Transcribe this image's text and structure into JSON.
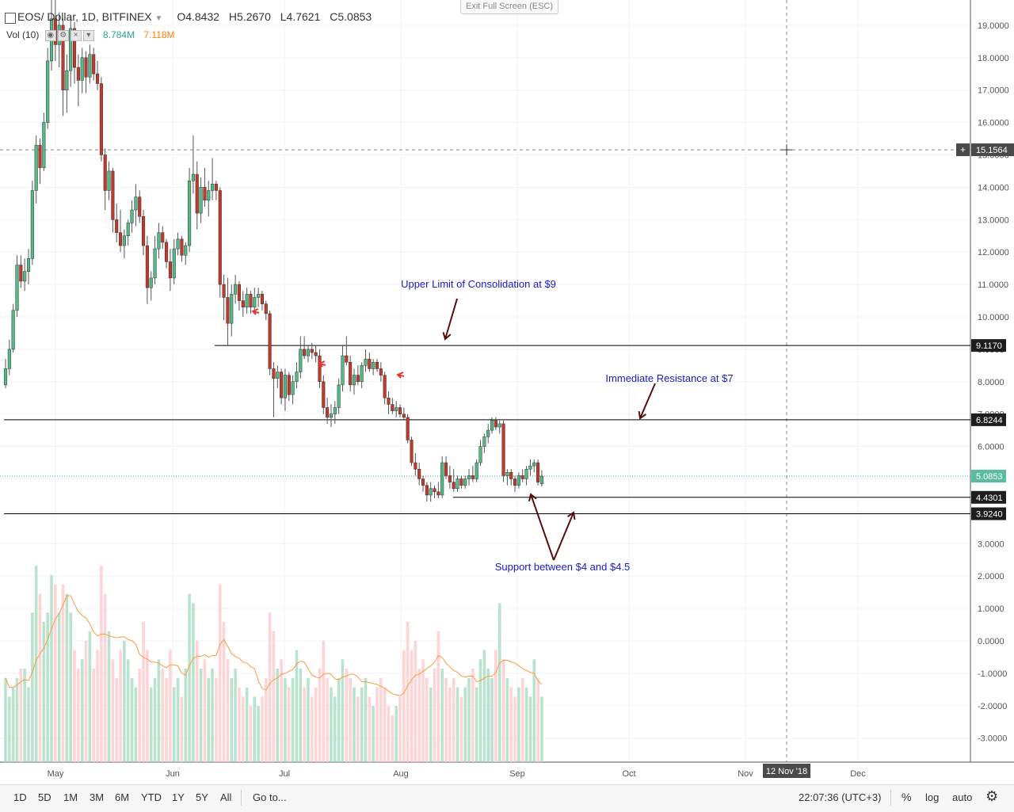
{
  "header": {
    "symbol": "EOS",
    "separator": "/",
    "quote": "Dollar, 1D, BITFINEX",
    "open": "O4.8432",
    "high": "H5.2670",
    "low": "L4.7621",
    "close": "C5.0853"
  },
  "volume_legend": {
    "label": "Vol (10)",
    "v1": "8.784M",
    "v2": "7.118M"
  },
  "exit_fullscreen": "Exit Full Screen (ESC)",
  "time_ranges": [
    "1D",
    "5D",
    "1M",
    "3M",
    "6M",
    "YTD",
    "1Y",
    "5Y",
    "All"
  ],
  "goto": "Go to...",
  "clock": "22:07:36 (UTC+3)",
  "controls": {
    "percent": "%",
    "log": "log",
    "auto": "auto"
  },
  "chart_data": {
    "type": "candlestick",
    "title": "",
    "y_ticks": [
      "19.0000",
      "18.0000",
      "17.0000",
      "16.0000",
      "15.0000",
      "14.0000",
      "13.0000",
      "12.0000",
      "11.0000",
      "10.0000",
      "9.0000",
      "8.0000",
      "7.0000",
      "6.0000",
      "5.0000",
      "4.0000",
      "3.0000",
      "2.0000",
      "1.0000",
      "0.0000",
      "-1.0000",
      "-2.0000",
      "-3.0000"
    ],
    "x_ticks": [
      "May",
      "Jun",
      "Jul",
      "Aug",
      "Sep",
      "Oct",
      "Nov",
      "Dec"
    ],
    "crosshair": {
      "price_label": "15.1564",
      "date_label": "12 Nov '18"
    },
    "price_labels": [
      {
        "value": 9.117,
        "text": "9.1170",
        "style": "dark"
      },
      {
        "value": 6.8244,
        "text": "6.8244",
        "style": "dark"
      },
      {
        "value": 5.0853,
        "text": "5.0853",
        "style": "green"
      },
      {
        "value": 4.4301,
        "text": "4.4301",
        "style": "dark"
      },
      {
        "value": 3.924,
        "text": "3.9240",
        "style": "dark"
      }
    ],
    "horizontal_lines": [
      {
        "value": 9.117,
        "from": "Jun 10"
      },
      {
        "value": 6.8244,
        "from": "start"
      },
      {
        "value": 4.4301,
        "from": "Aug 14"
      },
      {
        "value": 3.924,
        "from": "start"
      }
    ],
    "annotations": [
      {
        "text": "Upper Limit of Consolidation at $9",
        "points_to": 9.117
      },
      {
        "text": "Immediate Resistance at $7",
        "points_to": 6.8244
      },
      {
        "text": "Support between $4 and $4.5",
        "points_to": [
          4.4301,
          3.924
        ]
      }
    ],
    "ohlc": [
      [
        7.9,
        8.7,
        7.8,
        8.4
      ],
      [
        8.4,
        9.3,
        8.2,
        9.0
      ],
      [
        9.0,
        10.4,
        8.9,
        10.2
      ],
      [
        10.2,
        11.9,
        10.0,
        11.6
      ],
      [
        11.6,
        11.9,
        10.9,
        11.1
      ],
      [
        11.1,
        11.8,
        10.8,
        11.4
      ],
      [
        11.4,
        12.1,
        11.0,
        11.8
      ],
      [
        11.8,
        14.2,
        11.6,
        13.9
      ],
      [
        13.9,
        15.6,
        13.5,
        15.3
      ],
      [
        15.3,
        15.5,
        14.1,
        14.6
      ],
      [
        14.6,
        16.3,
        14.5,
        16.0
      ],
      [
        16.0,
        18.3,
        15.8,
        17.9
      ],
      [
        17.9,
        19.8,
        17.6,
        19.2
      ],
      [
        19.2,
        20.1,
        17.9,
        18.4
      ],
      [
        18.4,
        19.4,
        17.7,
        19.0
      ],
      [
        19.0,
        19.2,
        16.2,
        17.0
      ],
      [
        17.0,
        18.1,
        16.3,
        17.6
      ],
      [
        17.6,
        19.3,
        17.1,
        18.9
      ],
      [
        18.9,
        19.1,
        17.2,
        17.7
      ],
      [
        17.7,
        18.1,
        16.5,
        17.3
      ],
      [
        17.3,
        18.3,
        16.9,
        18.0
      ],
      [
        18.0,
        18.2,
        16.9,
        17.4
      ],
      [
        17.4,
        18.4,
        17.2,
        18.1
      ],
      [
        18.1,
        18.3,
        17.3,
        17.5
      ],
      [
        17.5,
        17.9,
        17.0,
        17.2
      ],
      [
        17.2,
        17.4,
        14.8,
        15.0
      ],
      [
        15.0,
        15.2,
        13.3,
        13.9
      ],
      [
        13.9,
        14.8,
        13.6,
        14.5
      ],
      [
        14.5,
        14.6,
        12.6,
        13.0
      ],
      [
        13.0,
        13.5,
        12.3,
        12.6
      ],
      [
        12.6,
        13.3,
        12.0,
        12.2
      ],
      [
        12.2,
        12.7,
        11.8,
        12.5
      ],
      [
        12.5,
        13.0,
        12.2,
        12.9
      ],
      [
        12.9,
        13.6,
        12.6,
        13.3
      ],
      [
        13.3,
        14.1,
        12.8,
        13.7
      ],
      [
        13.7,
        13.9,
        12.9,
        13.1
      ],
      [
        13.1,
        13.3,
        11.9,
        12.2
      ],
      [
        12.2,
        12.5,
        10.4,
        10.9
      ],
      [
        10.9,
        11.4,
        10.5,
        11.2
      ],
      [
        11.2,
        12.5,
        11.0,
        12.1
      ],
      [
        12.1,
        12.9,
        11.8,
        12.6
      ],
      [
        12.6,
        12.8,
        12.1,
        12.3
      ],
      [
        12.3,
        12.4,
        11.5,
        11.7
      ],
      [
        11.7,
        12.1,
        10.8,
        11.2
      ],
      [
        11.2,
        12.4,
        11.0,
        12.1
      ],
      [
        12.1,
        12.6,
        11.9,
        12.4
      ],
      [
        12.4,
        12.5,
        11.7,
        11.9
      ],
      [
        11.9,
        12.3,
        11.6,
        12.2
      ],
      [
        12.2,
        14.6,
        12.0,
        14.2
      ],
      [
        14.2,
        15.6,
        13.8,
        14.4
      ],
      [
        14.4,
        14.8,
        12.7,
        13.2
      ],
      [
        13.2,
        14.3,
        12.9,
        14.0
      ],
      [
        14.0,
        14.6,
        13.4,
        13.6
      ],
      [
        13.6,
        14.2,
        13.1,
        13.9
      ],
      [
        13.9,
        14.9,
        13.6,
        14.1
      ],
      [
        14.1,
        14.2,
        13.6,
        13.9
      ],
      [
        13.9,
        14.0,
        10.6,
        11.0
      ],
      [
        11.0,
        11.3,
        9.9,
        10.6
      ],
      [
        10.6,
        11.2,
        9.1,
        9.8
      ],
      [
        9.8,
        11.0,
        9.4,
        10.7
      ],
      [
        10.7,
        11.3,
        10.4,
        11.0
      ],
      [
        11.0,
        11.1,
        10.2,
        10.5
      ],
      [
        10.5,
        10.8,
        10.0,
        10.3
      ],
      [
        10.3,
        10.9,
        10.1,
        10.7
      ],
      [
        10.7,
        10.8,
        10.1,
        10.3
      ],
      [
        10.3,
        10.9,
        10.2,
        10.6
      ],
      [
        10.6,
        10.9,
        10.3,
        10.7
      ],
      [
        10.7,
        10.8,
        10.2,
        10.4
      ],
      [
        10.4,
        10.5,
        9.9,
        10.1
      ],
      [
        10.1,
        10.2,
        8.2,
        8.4
      ],
      [
        8.4,
        8.6,
        6.9,
        8.1
      ],
      [
        8.1,
        8.5,
        7.8,
        8.3
      ],
      [
        8.3,
        8.4,
        7.3,
        7.5
      ],
      [
        7.5,
        8.4,
        7.1,
        8.2
      ],
      [
        8.2,
        8.3,
        7.4,
        7.6
      ],
      [
        7.6,
        8.2,
        7.3,
        8.0
      ],
      [
        8.0,
        8.6,
        7.8,
        8.3
      ],
      [
        8.3,
        9.4,
        8.1,
        9.0
      ],
      [
        9.0,
        9.4,
        8.7,
        8.8
      ],
      [
        8.8,
        9.1,
        8.6,
        9.0
      ],
      [
        9.0,
        9.2,
        8.7,
        8.9
      ],
      [
        8.9,
        9.1,
        8.6,
        8.8
      ],
      [
        8.8,
        9.0,
        7.8,
        8.0
      ],
      [
        8.0,
        8.2,
        7.0,
        7.2
      ],
      [
        7.2,
        7.5,
        6.7,
        6.9
      ],
      [
        6.9,
        7.3,
        6.6,
        7.0
      ],
      [
        7.0,
        7.4,
        6.7,
        7.2
      ],
      [
        7.2,
        8.1,
        7.0,
        7.9
      ],
      [
        7.9,
        9.1,
        7.7,
        8.8
      ],
      [
        8.8,
        9.4,
        8.5,
        8.6
      ],
      [
        8.6,
        8.8,
        7.7,
        7.9
      ],
      [
        7.9,
        8.4,
        7.6,
        8.2
      ],
      [
        8.2,
        8.5,
        7.9,
        8.0
      ],
      [
        8.0,
        8.6,
        7.8,
        8.5
      ],
      [
        8.5,
        9.0,
        8.3,
        8.7
      ],
      [
        8.7,
        8.9,
        8.3,
        8.4
      ],
      [
        8.4,
        8.7,
        8.2,
        8.6
      ],
      [
        8.6,
        8.7,
        8.3,
        8.4
      ],
      [
        8.4,
        8.6,
        8.0,
        8.2
      ],
      [
        8.2,
        8.3,
        7.3,
        7.5
      ],
      [
        7.5,
        7.7,
        7.0,
        7.3
      ],
      [
        7.3,
        7.5,
        7.0,
        7.1
      ],
      [
        7.1,
        7.4,
        6.9,
        7.2
      ],
      [
        7.2,
        7.3,
        6.9,
        7.0
      ],
      [
        7.0,
        7.2,
        6.8,
        6.9
      ],
      [
        6.9,
        7.0,
        6.1,
        6.2
      ],
      [
        6.2,
        6.3,
        5.4,
        5.5
      ],
      [
        5.5,
        5.8,
        5.1,
        5.3
      ],
      [
        5.3,
        5.5,
        4.8,
        5.0
      ],
      [
        5.0,
        5.1,
        4.6,
        4.8
      ],
      [
        4.8,
        4.9,
        4.3,
        4.5
      ],
      [
        4.5,
        4.9,
        4.3,
        4.7
      ],
      [
        4.7,
        4.8,
        4.4,
        4.6
      ],
      [
        4.6,
        4.9,
        4.4,
        4.5
      ],
      [
        4.5,
        5.7,
        4.4,
        5.5
      ],
      [
        5.5,
        5.7,
        5.0,
        5.1
      ],
      [
        5.1,
        5.4,
        4.7,
        4.9
      ],
      [
        4.9,
        5.3,
        4.6,
        4.7
      ],
      [
        4.7,
        5.1,
        4.6,
        5.0
      ],
      [
        5.0,
        5.1,
        4.7,
        4.8
      ],
      [
        4.8,
        5.1,
        4.7,
        5.0
      ],
      [
        5.0,
        5.3,
        4.8,
        5.1
      ],
      [
        5.1,
        5.4,
        4.9,
        5.0
      ],
      [
        5.0,
        5.6,
        4.9,
        5.5
      ],
      [
        5.5,
        6.2,
        5.4,
        6.0
      ],
      [
        6.0,
        6.4,
        5.8,
        6.3
      ],
      [
        6.3,
        6.7,
        6.1,
        6.5
      ],
      [
        6.5,
        6.9,
        6.4,
        6.8
      ],
      [
        6.8,
        6.9,
        6.5,
        6.6
      ],
      [
        6.6,
        6.8,
        6.4,
        6.7
      ],
      [
        6.7,
        6.8,
        4.9,
        5.1
      ],
      [
        5.1,
        5.3,
        4.8,
        5.2
      ],
      [
        5.2,
        5.3,
        4.8,
        5.0
      ],
      [
        5.0,
        5.1,
        4.6,
        4.8
      ],
      [
        4.8,
        5.2,
        4.7,
        5.1
      ],
      [
        5.1,
        5.3,
        4.9,
        5.0
      ],
      [
        5.0,
        5.4,
        4.8,
        5.3
      ],
      [
        5.3,
        5.6,
        5.1,
        5.4
      ],
      [
        5.4,
        5.6,
        5.2,
        5.5
      ],
      [
        5.5,
        5.6,
        4.8,
        4.9
      ],
      [
        4.8432,
        5.267,
        4.7621,
        5.0853
      ]
    ],
    "volume": [
      0.9,
      0.7,
      0.8,
      0.9,
      1.0,
      1.0,
      0.8,
      1.6,
      2.1,
      1.8,
      1.5,
      1.6,
      2.0,
      1.9,
      1.6,
      1.9,
      1.8,
      1.6,
      1.2,
      1.0,
      1.1,
      1.3,
      1.4,
      1.0,
      1.2,
      2.1,
      1.8,
      1.4,
      1.1,
      0.9,
      1.2,
      1.3,
      1.1,
      0.9,
      0.8,
      1.0,
      1.5,
      1.2,
      0.8,
      0.9,
      1.1,
      1.0,
      0.9,
      1.2,
      0.8,
      0.9,
      0.7,
      1.0,
      1.8,
      1.7,
      1.3,
      1.0,
      1.1,
      0.9,
      1.0,
      0.9,
      1.9,
      1.5,
      1.1,
      0.9,
      1.0,
      0.8,
      0.7,
      0.8,
      0.6,
      0.7,
      0.6,
      0.7,
      0.9,
      1.6,
      1.4,
      1.0,
      1.1,
      0.9,
      0.8,
      0.9,
      1.2,
      1.0,
      0.8,
      0.9,
      0.7,
      0.8,
      1.0,
      1.3,
      0.9,
      0.8,
      0.7,
      0.9,
      1.1,
      1.0,
      0.9,
      0.8,
      0.7,
      0.8,
      0.9,
      0.7,
      0.6,
      0.8,
      0.9,
      0.8,
      0.6,
      0.5,
      0.6,
      0.7,
      1.2,
      1.5,
      1.2,
      1.3,
      1.0,
      1.1,
      0.9,
      0.8,
      1.0,
      1.4,
      1.0,
      0.9,
      0.8,
      0.9,
      0.8,
      0.7,
      0.8,
      0.9,
      1.0,
      0.8,
      1.1,
      1.2,
      1.0,
      0.9,
      1.2,
      1.7,
      1.1,
      0.9,
      0.8,
      0.7,
      0.8,
      0.9,
      0.8,
      0.7,
      1.1,
      0.9,
      0.7
    ]
  }
}
